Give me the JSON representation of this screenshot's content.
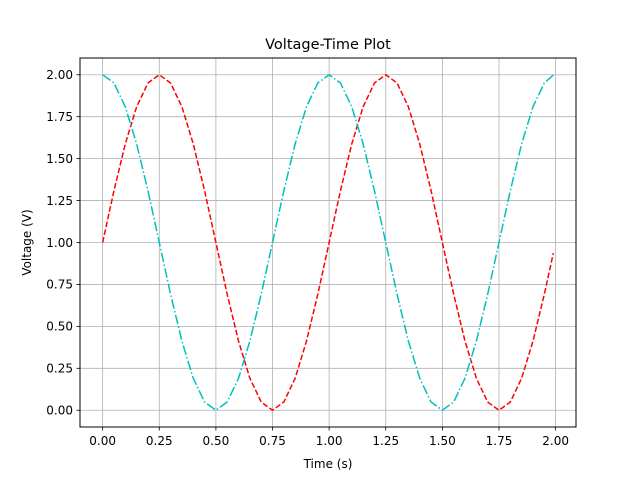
{
  "chart_data": {
    "type": "line",
    "title": "Voltage-Time Plot",
    "xlabel": "Time (s)",
    "ylabel": "Voltage (V)",
    "xlim": [
      -0.1,
      2.09
    ],
    "ylim": [
      -0.1,
      2.1
    ],
    "xticks": [
      0.0,
      0.25,
      0.5,
      0.75,
      1.0,
      1.25,
      1.5,
      1.75,
      2.0
    ],
    "xtick_labels": [
      "0.00",
      "0.25",
      "0.50",
      "0.75",
      "1.00",
      "1.25",
      "1.50",
      "1.75",
      "2.00"
    ],
    "yticks": [
      0.0,
      0.25,
      0.5,
      0.75,
      1.0,
      1.25,
      1.5,
      1.75,
      2.0
    ],
    "ytick_labels": [
      "0.00",
      "0.25",
      "0.50",
      "0.75",
      "1.00",
      "1.25",
      "1.50",
      "1.75",
      "2.00"
    ],
    "grid": true,
    "legend": false,
    "series": [
      {
        "color": "#ff0000",
        "linestyle": "dashed",
        "x": [
          0.0,
          0.05,
          0.1,
          0.15,
          0.2,
          0.25,
          0.3,
          0.35,
          0.4,
          0.45,
          0.5,
          0.55,
          0.6,
          0.65,
          0.7,
          0.75,
          0.8,
          0.85,
          0.9,
          0.95,
          1.0,
          1.05,
          1.1,
          1.15,
          1.2,
          1.25,
          1.3,
          1.35,
          1.4,
          1.45,
          1.5,
          1.55,
          1.6,
          1.65,
          1.7,
          1.75,
          1.8,
          1.85,
          1.9,
          1.95,
          1.99
        ],
        "values": [
          1.0,
          1.309,
          1.588,
          1.809,
          1.951,
          2.0,
          1.951,
          1.809,
          1.588,
          1.309,
          1.0,
          0.691,
          0.412,
          0.191,
          0.049,
          0.0,
          0.049,
          0.191,
          0.412,
          0.691,
          1.0,
          1.309,
          1.588,
          1.809,
          1.951,
          2.0,
          1.951,
          1.809,
          1.588,
          1.309,
          1.0,
          0.691,
          0.412,
          0.191,
          0.049,
          0.0,
          0.049,
          0.191,
          0.412,
          0.691,
          0.937
        ]
      },
      {
        "color": "#00bfbf",
        "linestyle": "dashdot",
        "x": [
          0.0,
          0.05,
          0.1,
          0.15,
          0.2,
          0.25,
          0.3,
          0.35,
          0.4,
          0.45,
          0.5,
          0.55,
          0.6,
          0.65,
          0.7,
          0.75,
          0.8,
          0.85,
          0.9,
          0.95,
          1.0,
          1.05,
          1.1,
          1.15,
          1.2,
          1.25,
          1.3,
          1.35,
          1.4,
          1.45,
          1.5,
          1.55,
          1.6,
          1.65,
          1.7,
          1.75,
          1.8,
          1.85,
          1.9,
          1.95,
          1.99
        ],
        "values": [
          2.0,
          1.951,
          1.809,
          1.588,
          1.309,
          1.0,
          0.691,
          0.412,
          0.191,
          0.049,
          0.0,
          0.049,
          0.191,
          0.412,
          0.691,
          1.0,
          1.309,
          1.588,
          1.809,
          1.951,
          2.0,
          1.951,
          1.809,
          1.588,
          1.309,
          1.0,
          0.691,
          0.412,
          0.191,
          0.049,
          0.0,
          0.049,
          0.191,
          0.412,
          0.691,
          1.0,
          1.309,
          1.588,
          1.809,
          1.951,
          1.998
        ]
      }
    ]
  }
}
